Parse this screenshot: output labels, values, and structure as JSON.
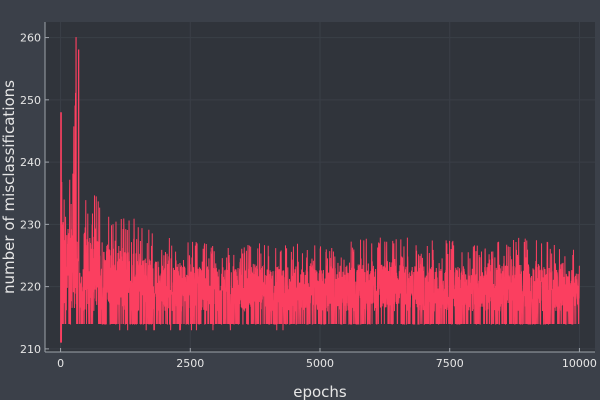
{
  "chart_data": {
    "type": "line",
    "title": "",
    "xlabel": "epochs",
    "ylabel": "number of misclassifications",
    "xlim": [
      -300,
      10300
    ],
    "ylim": [
      209.5,
      262.5
    ],
    "x_ticks": [
      0,
      2500,
      5000,
      7500,
      10000
    ],
    "x_tick_labels": [
      "0",
      "2500",
      "5000",
      "7500",
      "10000"
    ],
    "y_ticks": [
      210,
      220,
      230,
      240,
      250,
      260
    ],
    "y_tick_labels": [
      "210",
      "220",
      "230",
      "240",
      "250",
      "260"
    ],
    "grid": true,
    "legend": "none",
    "series": [
      {
        "x_start": 0,
        "x_end": 10000,
        "min": 211,
        "max": 260,
        "sampled_points": [
          {
            "x": 0,
            "y": 211
          },
          {
            "x": 10,
            "y": 248
          },
          {
            "x": 40,
            "y": 243
          },
          {
            "x": 80,
            "y": 240
          },
          {
            "x": 150,
            "y": 238
          },
          {
            "x": 300,
            "y": 260
          },
          {
            "x": 310,
            "y": 221
          },
          {
            "x": 350,
            "y": 258
          },
          {
            "x": 360,
            "y": 221
          },
          {
            "x": 500,
            "y": 236
          },
          {
            "x": 700,
            "y": 236
          },
          {
            "x": 1000,
            "y": 233
          },
          {
            "x": 1500,
            "y": 231
          },
          {
            "x": 2000,
            "y": 228
          },
          {
            "x": 3000,
            "y": 227
          },
          {
            "x": 4000,
            "y": 227
          },
          {
            "x": 5000,
            "y": 227
          },
          {
            "x": 6000,
            "y": 228
          },
          {
            "x": 7000,
            "y": 228
          },
          {
            "x": 8000,
            "y": 227
          },
          {
            "x": 9000,
            "y": 228
          },
          {
            "x": 10000,
            "y": 226
          }
        ],
        "typical_range": [
          214,
          229
        ]
      }
    ]
  },
  "colors": {
    "background": "#30343b",
    "outer": "#3b4049",
    "axis": "#9ea3aa",
    "grid": "#3a3f47",
    "text": "#e6e6e6",
    "series": "#fb3f60"
  }
}
